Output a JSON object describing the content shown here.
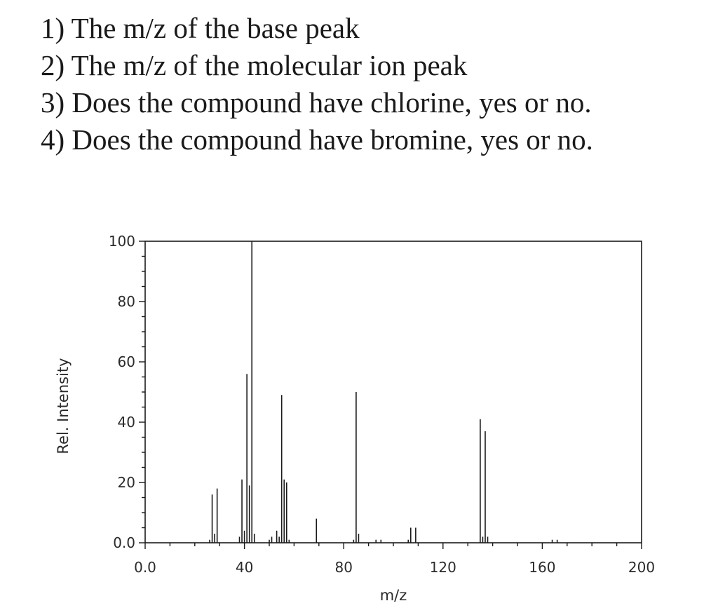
{
  "questions": [
    "1) The m/z of the base peak",
    "2) The m/z of the molecular ion peak",
    "3) Does the compound have chlorine, yes or no.",
    "4) Does the compound have bromine, yes or no."
  ],
  "chart_data": {
    "type": "bar",
    "title": "",
    "xlabel": "m/z",
    "ylabel": "Rel. Intensity",
    "xlim": [
      0,
      200
    ],
    "ylim": [
      0,
      100
    ],
    "xticks": [
      0,
      40,
      80,
      120,
      160,
      200
    ],
    "xtick_labels": [
      "0.0",
      "40",
      "80",
      "120",
      "160",
      "200"
    ],
    "yticks": [
      0,
      20,
      40,
      60,
      80,
      100
    ],
    "ytick_labels": [
      "0.0",
      "20",
      "40",
      "60",
      "80",
      "100"
    ],
    "grid": false,
    "line_color": "#1a1a1a",
    "peaks": [
      {
        "mz": 26,
        "intensity": 1
      },
      {
        "mz": 27,
        "intensity": 16
      },
      {
        "mz": 28,
        "intensity": 3
      },
      {
        "mz": 29,
        "intensity": 18
      },
      {
        "mz": 38,
        "intensity": 2
      },
      {
        "mz": 39,
        "intensity": 21
      },
      {
        "mz": 40,
        "intensity": 4
      },
      {
        "mz": 41,
        "intensity": 56
      },
      {
        "mz": 42,
        "intensity": 19
      },
      {
        "mz": 43,
        "intensity": 100
      },
      {
        "mz": 44,
        "intensity": 3
      },
      {
        "mz": 50,
        "intensity": 1
      },
      {
        "mz": 51,
        "intensity": 2
      },
      {
        "mz": 53,
        "intensity": 4
      },
      {
        "mz": 54,
        "intensity": 2
      },
      {
        "mz": 55,
        "intensity": 49
      },
      {
        "mz": 56,
        "intensity": 21
      },
      {
        "mz": 57,
        "intensity": 20
      },
      {
        "mz": 58,
        "intensity": 1
      },
      {
        "mz": 69,
        "intensity": 8
      },
      {
        "mz": 84,
        "intensity": 1
      },
      {
        "mz": 85,
        "intensity": 50
      },
      {
        "mz": 86,
        "intensity": 3
      },
      {
        "mz": 93,
        "intensity": 1
      },
      {
        "mz": 95,
        "intensity": 1
      },
      {
        "mz": 106,
        "intensity": 1
      },
      {
        "mz": 107,
        "intensity": 5
      },
      {
        "mz": 109,
        "intensity": 5
      },
      {
        "mz": 135,
        "intensity": 41
      },
      {
        "mz": 136,
        "intensity": 2
      },
      {
        "mz": 137,
        "intensity": 37
      },
      {
        "mz": 138,
        "intensity": 2
      },
      {
        "mz": 164,
        "intensity": 1
      },
      {
        "mz": 166,
        "intensity": 1
      }
    ]
  }
}
